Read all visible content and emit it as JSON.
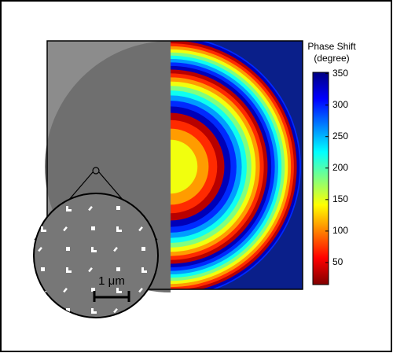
{
  "colorbar": {
    "title": "Phase Shift",
    "unit": "(degree)",
    "lim": [
      15,
      352
    ],
    "ticks": [
      50,
      100,
      150,
      200,
      250,
      300,
      350
    ]
  },
  "scale_bar": {
    "label": "1 μm"
  }
}
